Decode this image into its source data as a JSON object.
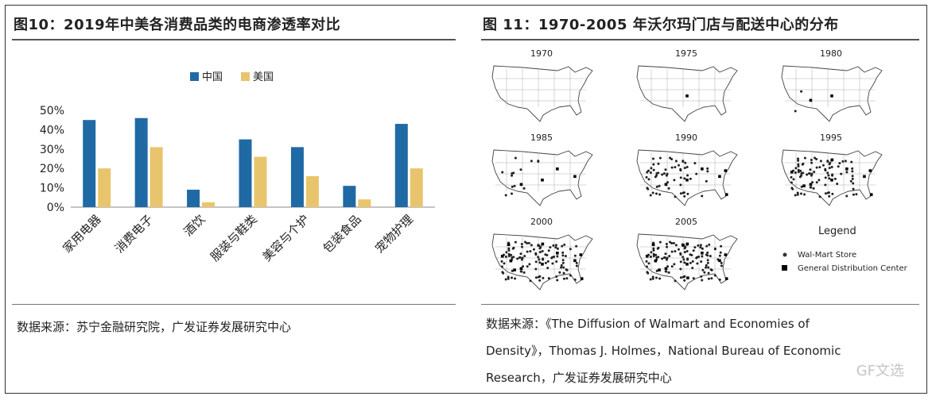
{
  "left": {
    "title": "图10：2019年中美各消费品类的电商渗透率对比",
    "source": "数据来源：苏宁金融研究院，广发证券发展研究中心"
  },
  "right": {
    "title": "图 11：1970-2005 年沃尔玛门店与配送中心的分布",
    "map_years": [
      "1970",
      "1975",
      "1980",
      "1985",
      "1990",
      "1995",
      "2000",
      "2005"
    ],
    "legend_title": "Legend",
    "legend_store": "Wal-Mart Store",
    "legend_dc": "General Distribution Center",
    "source_line1": "数据来源：《The Diffusion of Walmart and Economies of",
    "source_line2": "Density》，Thomas J. Holmes，National Bureau of Economic",
    "source_line3": "Research，广发证券发展研究中心"
  },
  "watermark": "GF文选",
  "colors": {
    "china": "#1f6aa5",
    "usa": "#e8c56d"
  },
  "chart_data": {
    "type": "bar",
    "categories": [
      "家用电器",
      "消费电子",
      "酒饮",
      "服装与鞋类",
      "美容与个护",
      "包装食品",
      "宠物护理"
    ],
    "series": [
      {
        "name": "中国",
        "values": [
          45,
          46,
          9,
          35,
          31,
          11,
          43
        ]
      },
      {
        "name": "美国",
        "values": [
          20,
          31,
          2.5,
          26,
          16,
          4,
          20
        ]
      }
    ],
    "yticks": [
      "0%",
      "10%",
      "20%",
      "30%",
      "40%",
      "50%"
    ],
    "ylim": [
      0,
      50
    ],
    "legend": "top-center",
    "grid": false
  }
}
